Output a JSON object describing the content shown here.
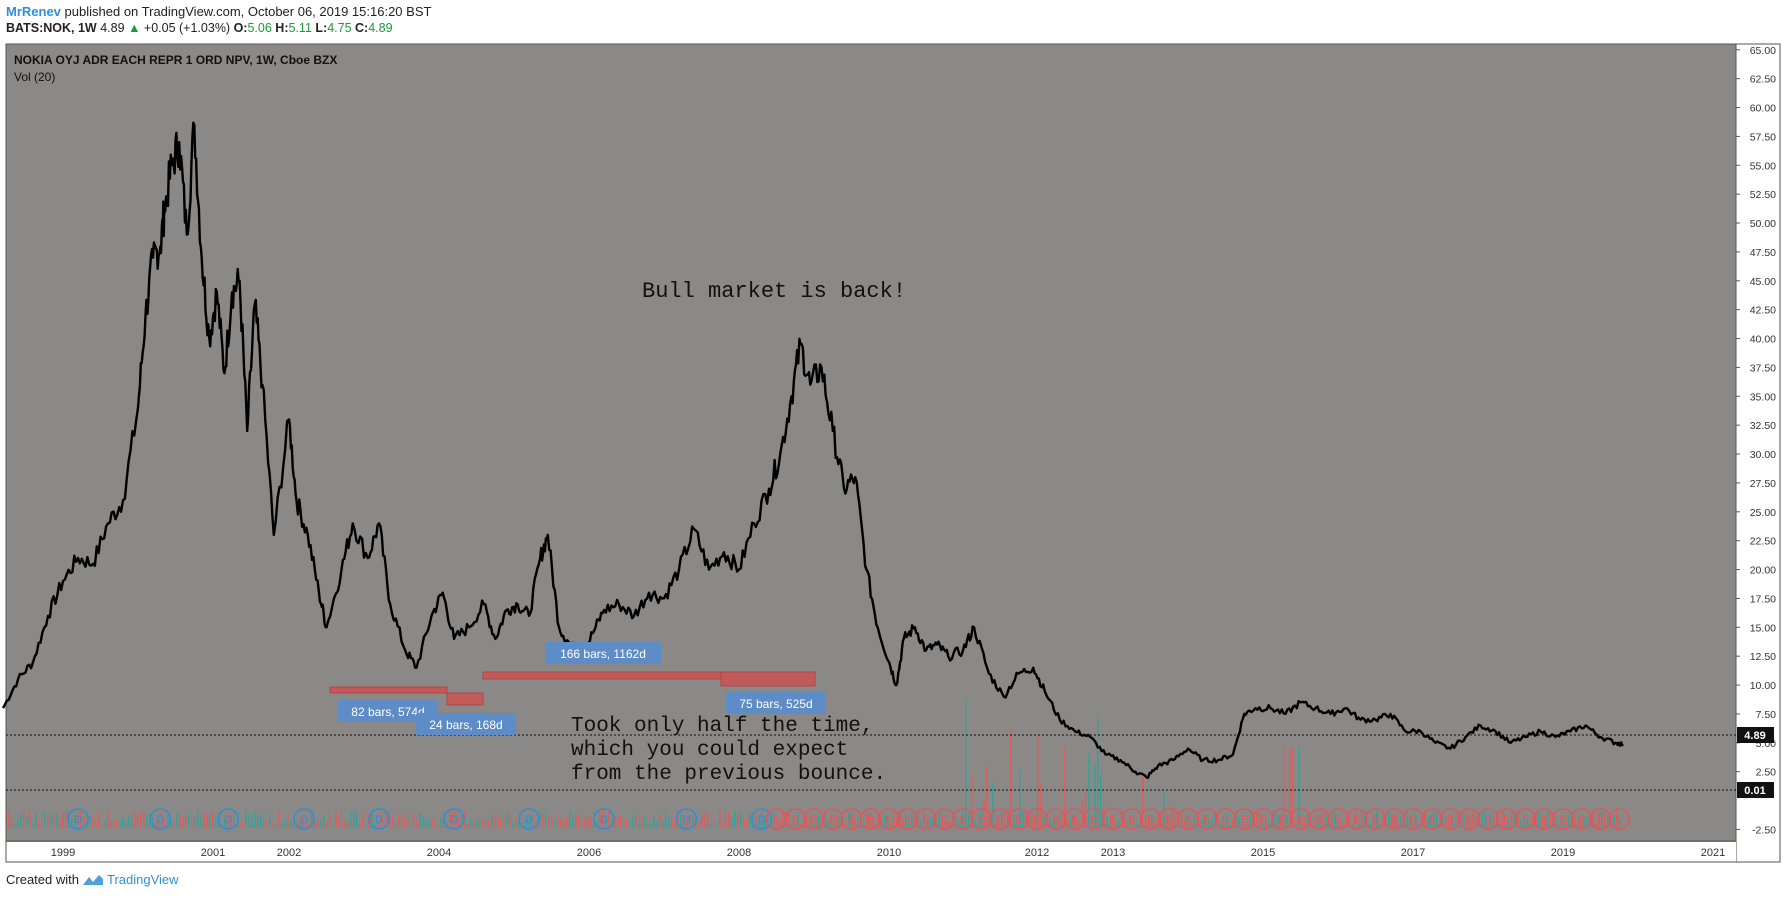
{
  "header": {
    "user": "MrRenev",
    "published": "published on TradingView.com, October 06, 2019 15:16:20 BST",
    "symbol": "BATS:NOK, 1W",
    "price": "4.89",
    "arrow": "▲",
    "change": "+0.05 (+1.03%)",
    "o_label": "O:",
    "o_value": "5.06",
    "h_label": "H:",
    "h_value": "5.11",
    "l_label": "L:",
    "l_value": "4.75",
    "c_label": "C:",
    "c_value": "4.89"
  },
  "legend": {
    "title": "NOKIA OYJ ADR EACH REPR 1 ORD NPV, 1W, Cboe BZX",
    "vol": "Vol (20)"
  },
  "footer": {
    "created_with": "Created with",
    "brand": "TradingView"
  },
  "colors": {
    "plot_bg": "#8a8987",
    "line": "#000000",
    "accent": "#2f8ed6",
    "up": "#1a9b3a",
    "range_box": "#c25a5a",
    "label_bg": "#5e8cc6",
    "vol_up": "#26a69a",
    "vol_down": "#ef5350"
  },
  "chart_data": {
    "type": "line",
    "title": "NOKIA OYJ ADR EACH REPR 1 ORD NPV, 1W, Cboe BZX",
    "xlabel": "",
    "ylabel": "",
    "ylim": [
      -3.5,
      65.5
    ],
    "y_ticks": [
      "65.00",
      "62.50",
      "60.00",
      "57.50",
      "55.00",
      "52.50",
      "50.00",
      "47.50",
      "45.00",
      "42.50",
      "40.00",
      "37.50",
      "35.00",
      "32.50",
      "30.00",
      "27.50",
      "25.00",
      "22.50",
      "20.00",
      "17.50",
      "15.00",
      "12.50",
      "10.00",
      "7.50",
      "5.00",
      "2.50",
      "-2.50"
    ],
    "x_ticks": [
      "1999",
      "2001",
      "2002",
      "2004",
      "2006",
      "2008",
      "2010",
      "2012",
      "2013",
      "2015",
      "2017",
      "2019",
      "2021"
    ],
    "series": [
      {
        "values": [
          [
            1998.2,
            8.0
          ],
          [
            1998.4,
            10.5
          ],
          [
            1998.6,
            12.0
          ],
          [
            1998.8,
            16.0
          ],
          [
            1999.0,
            19.0
          ],
          [
            1999.2,
            21.0
          ],
          [
            1999.4,
            20.5
          ],
          [
            1999.6,
            24.0
          ],
          [
            1999.8,
            26.0
          ],
          [
            2000.0,
            34.0
          ],
          [
            2000.1,
            42.0
          ],
          [
            2000.2,
            47.0
          ],
          [
            2000.3,
            48.0
          ],
          [
            2000.35,
            51.0
          ],
          [
            2000.45,
            55.0
          ],
          [
            2000.55,
            57.0
          ],
          [
            2000.65,
            49.0
          ],
          [
            2000.75,
            58.5
          ],
          [
            2000.85,
            47.0
          ],
          [
            2000.95,
            40.0
          ],
          [
            2001.05,
            44.0
          ],
          [
            2001.15,
            37.0
          ],
          [
            2001.25,
            44.0
          ],
          [
            2001.35,
            45.0
          ],
          [
            2001.45,
            32.0
          ],
          [
            2001.55,
            43.0
          ],
          [
            2001.65,
            36.0
          ],
          [
            2001.8,
            23.0
          ],
          [
            2002.0,
            33.0
          ],
          [
            2002.1,
            26.0
          ],
          [
            2002.25,
            23.0
          ],
          [
            2002.4,
            18.0
          ],
          [
            2002.5,
            15.0
          ],
          [
            2002.7,
            20.0
          ],
          [
            2002.85,
            24.0
          ],
          [
            2003.05,
            21.0
          ],
          [
            2003.2,
            24.0
          ],
          [
            2003.35,
            17.0
          ],
          [
            2003.55,
            13.0
          ],
          [
            2003.7,
            11.5
          ],
          [
            2003.9,
            16.0
          ],
          [
            2004.05,
            18.0
          ],
          [
            2004.2,
            14.0
          ],
          [
            2004.4,
            15.0
          ],
          [
            2004.6,
            17.0
          ],
          [
            2004.75,
            14.0
          ],
          [
            2004.9,
            16.5
          ],
          [
            2005.05,
            17.0
          ],
          [
            2005.2,
            16.0
          ],
          [
            2005.35,
            21.0
          ],
          [
            2005.45,
            23.0
          ],
          [
            2005.6,
            15.0
          ],
          [
            2005.75,
            13.5
          ],
          [
            2005.9,
            12.5
          ],
          [
            2006.05,
            14.5
          ],
          [
            2006.2,
            16.5
          ],
          [
            2006.4,
            17.0
          ],
          [
            2006.6,
            16.0
          ],
          [
            2006.8,
            18.0
          ],
          [
            2007.0,
            17.5
          ],
          [
            2007.2,
            20.0
          ],
          [
            2007.4,
            23.5
          ],
          [
            2007.6,
            20.0
          ],
          [
            2007.8,
            21.5
          ],
          [
            2008.0,
            20.0
          ],
          [
            2008.2,
            24.0
          ],
          [
            2008.4,
            27.0
          ],
          [
            2008.55,
            30.0
          ],
          [
            2008.7,
            35.0
          ],
          [
            2008.82,
            39.5
          ],
          [
            2008.95,
            36.0
          ],
          [
            2009.1,
            37.5
          ],
          [
            2009.25,
            32.0
          ],
          [
            2009.4,
            27.0
          ],
          [
            2009.55,
            28.0
          ],
          [
            2009.7,
            20.0
          ],
          [
            2009.85,
            15.0
          ],
          [
            2010.0,
            12.0
          ],
          [
            2010.1,
            10.0
          ],
          [
            2010.2,
            14.0
          ],
          [
            2010.35,
            15.0
          ],
          [
            2010.5,
            13.0
          ],
          [
            2010.65,
            13.5
          ],
          [
            2010.8,
            12.5
          ],
          [
            2011.0,
            13.0
          ],
          [
            2011.15,
            15.0
          ],
          [
            2011.35,
            11.0
          ],
          [
            2011.55,
            9.0
          ],
          [
            2011.75,
            11.0
          ],
          [
            2011.95,
            11.5
          ],
          [
            2012.1,
            9.5
          ],
          [
            2012.3,
            7.0
          ],
          [
            2012.5,
            6.0
          ],
          [
            2012.7,
            5.5
          ],
          [
            2012.9,
            4.0
          ],
          [
            2013.1,
            3.5
          ],
          [
            2013.3,
            2.5
          ],
          [
            2013.45,
            2.0
          ],
          [
            2013.6,
            3.0
          ],
          [
            2013.8,
            3.5
          ],
          [
            2014.0,
            4.5
          ],
          [
            2014.2,
            3.5
          ],
          [
            2014.4,
            3.5
          ],
          [
            2014.6,
            4.0
          ],
          [
            2014.75,
            7.5
          ],
          [
            2014.9,
            8.0
          ],
          [
            2015.1,
            8.0
          ],
          [
            2015.3,
            7.5
          ],
          [
            2015.5,
            8.5
          ],
          [
            2015.7,
            8.0
          ],
          [
            2015.9,
            7.5
          ],
          [
            2016.1,
            8.0
          ],
          [
            2016.3,
            7.0
          ],
          [
            2016.5,
            7.0
          ],
          [
            2016.7,
            7.5
          ],
          [
            2016.9,
            6.0
          ],
          [
            2017.1,
            6.0
          ],
          [
            2017.3,
            5.0
          ],
          [
            2017.5,
            4.5
          ],
          [
            2017.7,
            5.5
          ],
          [
            2017.9,
            6.5
          ],
          [
            2018.1,
            6.0
          ],
          [
            2018.3,
            5.0
          ],
          [
            2018.5,
            5.5
          ],
          [
            2018.7,
            6.0
          ],
          [
            2018.9,
            5.5
          ],
          [
            2019.1,
            6.0
          ],
          [
            2019.3,
            6.5
          ],
          [
            2019.5,
            5.5
          ],
          [
            2019.7,
            5.0
          ],
          [
            2019.8,
            4.89
          ]
        ]
      }
    ],
    "volume_ylim": [
      -3.5,
      65.5
    ],
    "annotations": {
      "main_text": "Bull market is back!",
      "bottom_text": [
        "Took only half the time,",
        "which you could expect",
        "from the previous bounce."
      ],
      "range_labels": [
        "166 bars, 1162d",
        "82 bars, 574d",
        "24 bars, 168d",
        "75 bars, 525d"
      ],
      "last_price": "4.89",
      "last_volume": "0.01",
      "dividend_marker": "D",
      "earnings_marker": "E"
    }
  }
}
